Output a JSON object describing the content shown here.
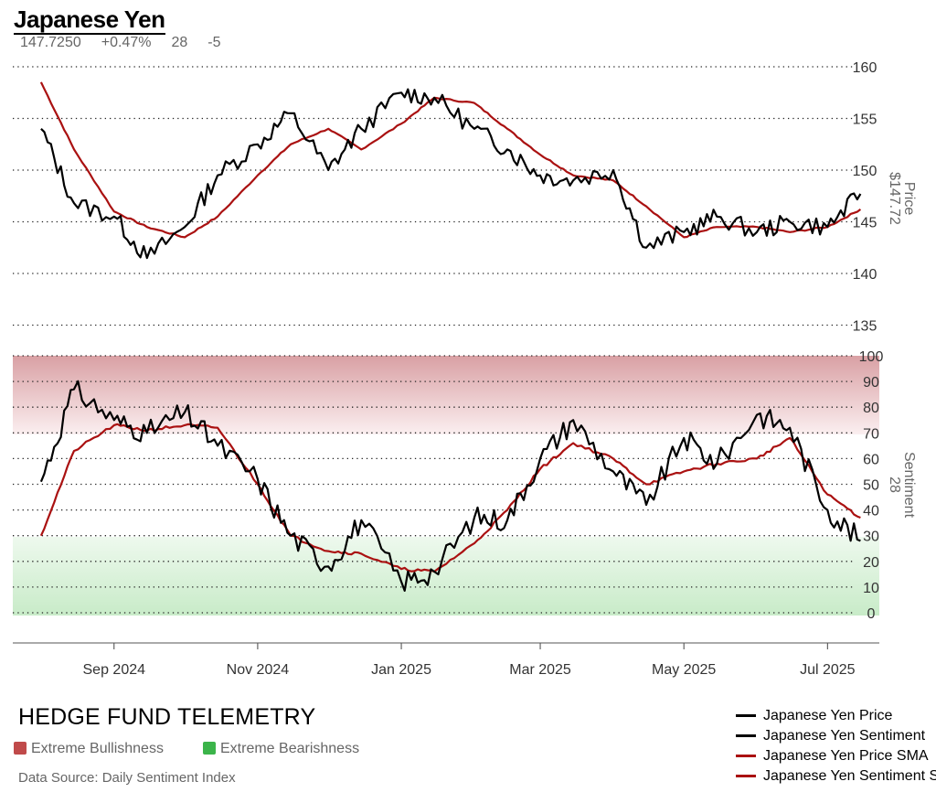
{
  "header": {
    "title": "Japanese Yen",
    "price": "147.7250",
    "change": "+0.47%",
    "sentiment": "28",
    "sentiment_change": "-5"
  },
  "colors": {
    "price_line": "#000000",
    "sma_line": "#aa1111",
    "extreme_bullish": "#c04a4a",
    "extreme_bearish": "#3bb44a",
    "grid": "#000000",
    "axis_text": "#333333"
  },
  "branding": {
    "name": "HEDGE FUND TELEMETRY",
    "bullish_label": "Extreme Bullishness",
    "bearish_label": "Extreme Bearishness",
    "source": "Data Source: Daily Sentiment Index"
  },
  "legend": [
    {
      "label": "Japanese Yen Price",
      "color": "#000000"
    },
    {
      "label": "Japanese Yen Sentiment",
      "color": "#000000"
    },
    {
      "label": "Japanese Yen Price SMA",
      "color": "#aa1111"
    },
    {
      "label": "Japanese Yen Sentiment SMA",
      "color": "#aa1111"
    }
  ],
  "chart_data": [
    {
      "type": "line",
      "panel": "price",
      "ylabel": "Price",
      "ylabel_value": "$147.72",
      "ylim": [
        135,
        160
      ],
      "yticks": [
        135,
        140,
        145,
        150,
        155,
        160
      ],
      "grid": true,
      "xticks": [
        "Sep 2024",
        "Nov 2024",
        "Jan 2025",
        "Mar 2025",
        "May 2025",
        "Jul 2025"
      ],
      "x": [
        "2024-08-01",
        "2024-08-15",
        "2024-09-01",
        "2024-09-15",
        "2024-10-01",
        "2024-10-15",
        "2024-11-01",
        "2024-11-15",
        "2024-12-01",
        "2024-12-15",
        "2025-01-01",
        "2025-01-15",
        "2025-02-01",
        "2025-02-15",
        "2025-03-01",
        "2025-03-15",
        "2025-04-01",
        "2025-04-15",
        "2025-05-01",
        "2025-05-15",
        "2025-06-01",
        "2025-06-15",
        "2025-07-01",
        "2025-07-15"
      ],
      "series": [
        {
          "name": "Japanese Yen Price",
          "values": [
            154.0,
            146.8,
            145.5,
            141.5,
            144.5,
            149.5,
            152.5,
            155.5,
            150.0,
            154.0,
            157.5,
            157.0,
            154.0,
            152.0,
            149.5,
            149.0,
            150.0,
            142.5,
            144.0,
            145.5,
            144.0,
            145.0,
            144.5,
            147.7
          ]
        },
        {
          "name": "Japanese Yen Price SMA",
          "values": [
            158.5,
            152.0,
            146.0,
            144.5,
            143.5,
            145.5,
            149.5,
            152.5,
            154.0,
            152.0,
            154.5,
            157.0,
            156.5,
            154.0,
            151.5,
            149.5,
            149.0,
            146.5,
            143.5,
            144.5,
            144.5,
            144.0,
            144.5,
            146.2
          ]
        }
      ]
    },
    {
      "type": "line",
      "panel": "sentiment",
      "ylabel": "Sentiment",
      "ylabel_value": "28",
      "ylim": [
        0,
        100
      ],
      "yticks": [
        0,
        10,
        20,
        30,
        40,
        50,
        60,
        70,
        80,
        90,
        100
      ],
      "bands": [
        {
          "label": "Extreme Bullishness",
          "from": 70,
          "to": 100
        },
        {
          "label": "Extreme Bearishness",
          "from": 0,
          "to": 30
        }
      ],
      "grid": true,
      "x": [
        "2024-08-01",
        "2024-08-15",
        "2024-09-01",
        "2024-09-15",
        "2024-10-01",
        "2024-10-15",
        "2024-11-01",
        "2024-11-15",
        "2024-12-01",
        "2024-12-15",
        "2025-01-01",
        "2025-01-15",
        "2025-02-01",
        "2025-02-15",
        "2025-03-01",
        "2025-03-15",
        "2025-04-01",
        "2025-04-15",
        "2025-05-01",
        "2025-05-15",
        "2025-06-01",
        "2025-06-15",
        "2025-07-01",
        "2025-07-15"
      ],
      "series": [
        {
          "name": "Japanese Yen Sentiment",
          "values": [
            51,
            87,
            75,
            70,
            78,
            65,
            52,
            30,
            18,
            36,
            12,
            16,
            37,
            36,
            60,
            75,
            55,
            42,
            68,
            58,
            77,
            72,
            40,
            28
          ]
        },
        {
          "name": "Japanese Yen Sentiment SMA",
          "values": [
            30,
            63,
            73,
            71,
            73,
            72,
            50,
            30,
            24,
            23,
            17,
            16,
            27,
            40,
            56,
            66,
            60,
            50,
            55,
            58,
            60,
            68,
            46,
            37
          ]
        }
      ]
    }
  ]
}
